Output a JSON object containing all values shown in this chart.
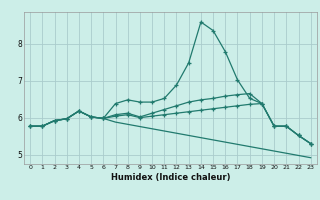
{
  "xlabel": "Humidex (Indice chaleur)",
  "bg_color": "#cceee8",
  "grid_color": "#aacccc",
  "line_color": "#217a6e",
  "xlim": [
    -0.5,
    23.5
  ],
  "ylim": [
    4.75,
    8.85
  ],
  "yticks": [
    5,
    6,
    7,
    8
  ],
  "xticks": [
    0,
    1,
    2,
    3,
    4,
    5,
    6,
    7,
    8,
    9,
    10,
    11,
    12,
    13,
    14,
    15,
    16,
    17,
    18,
    19,
    20,
    21,
    22,
    23
  ],
  "s1_x": [
    0,
    1,
    2,
    3,
    4,
    5,
    6,
    7,
    8,
    9,
    10,
    11,
    12,
    13,
    14,
    15,
    16,
    17,
    18,
    19,
    20,
    21,
    22,
    23
  ],
  "s1_y": [
    5.77,
    5.77,
    5.92,
    5.97,
    6.18,
    6.02,
    5.98,
    6.38,
    6.48,
    6.42,
    6.42,
    6.52,
    6.88,
    7.48,
    8.58,
    8.35,
    7.78,
    7.02,
    6.52,
    6.38,
    5.77,
    5.77,
    5.52,
    5.3
  ],
  "s2_x": [
    0,
    1,
    2,
    3,
    4,
    5,
    6,
    7,
    8,
    9,
    10,
    11,
    12,
    13,
    14,
    15,
    16,
    17,
    18,
    19,
    20,
    21,
    22,
    23
  ],
  "s2_y": [
    5.77,
    5.77,
    5.92,
    5.97,
    6.18,
    6.02,
    5.98,
    6.08,
    6.12,
    6.02,
    6.12,
    6.22,
    6.32,
    6.42,
    6.48,
    6.52,
    6.58,
    6.62,
    6.65,
    6.38,
    5.77,
    5.77,
    5.52,
    5.3
  ],
  "s3_x": [
    0,
    1,
    2,
    3,
    4,
    5,
    6,
    7,
    8,
    9,
    10,
    11,
    12,
    13,
    14,
    15,
    16,
    17,
    18,
    19,
    20,
    21,
    22,
    23
  ],
  "s3_y": [
    5.77,
    5.77,
    5.92,
    5.97,
    6.18,
    6.02,
    5.98,
    6.04,
    6.08,
    6.0,
    6.04,
    6.08,
    6.12,
    6.16,
    6.2,
    6.24,
    6.28,
    6.32,
    6.36,
    6.38,
    5.77,
    5.77,
    5.52,
    5.3
  ],
  "s4_x": [
    0,
    1,
    2,
    3,
    4,
    5,
    6,
    7,
    8,
    9,
    10,
    11,
    12,
    13,
    14,
    15,
    16,
    17,
    18,
    19,
    20,
    21,
    22,
    23
  ],
  "s4_y": [
    5.77,
    5.77,
    5.92,
    5.97,
    6.18,
    6.02,
    5.98,
    5.88,
    5.82,
    5.76,
    5.7,
    5.64,
    5.58,
    5.52,
    5.46,
    5.4,
    5.34,
    5.28,
    5.22,
    5.16,
    5.1,
    5.04,
    4.98,
    4.92
  ]
}
